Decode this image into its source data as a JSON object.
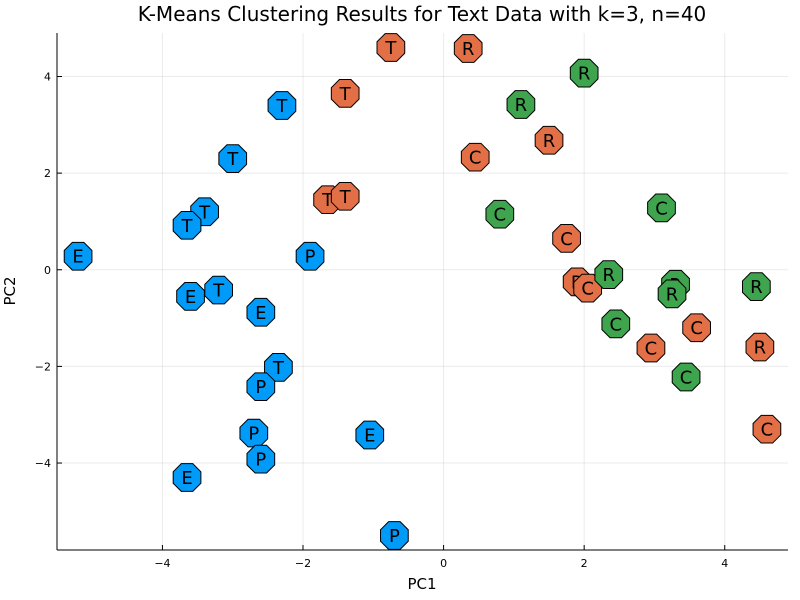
{
  "chart_data": {
    "type": "scatter",
    "title": "K-Means Clustering Results for Text Data with k=3, n=40",
    "xlabel": "PC1",
    "ylabel": "PC2",
    "xlim": [
      -5.5,
      4.9
    ],
    "ylim": [
      -5.8,
      4.9
    ],
    "xticks": [
      -4,
      -2,
      0,
      2,
      4
    ],
    "yticks": [
      -4,
      -2,
      0,
      2,
      4
    ],
    "xtick_labels": [
      "−4",
      "−2",
      "0",
      "2",
      "4"
    ],
    "ytick_labels": [
      "−4",
      "−2",
      "0",
      "2",
      "4"
    ],
    "grid": true,
    "legend": "none",
    "colors": [
      "#009af9",
      "#e26f46",
      "#3ea44e"
    ],
    "clusters": [
      {
        "color": "#009af9",
        "points": [
          {
            "x": -5.2,
            "y": 0.28,
            "label": "E"
          },
          {
            "x": -2.3,
            "y": 3.4,
            "label": "T"
          },
          {
            "x": -3.0,
            "y": 2.3,
            "label": "T"
          },
          {
            "x": -3.4,
            "y": 1.2,
            "label": "T"
          },
          {
            "x": -3.65,
            "y": 0.92,
            "label": "T"
          },
          {
            "x": -1.9,
            "y": 0.28,
            "label": "P"
          },
          {
            "x": -3.6,
            "y": -0.55,
            "label": "E"
          },
          {
            "x": -3.2,
            "y": -0.42,
            "label": "T"
          },
          {
            "x": -2.6,
            "y": -0.88,
            "label": "E"
          },
          {
            "x": -2.35,
            "y": -2.02,
            "label": "T"
          },
          {
            "x": -2.6,
            "y": -2.42,
            "label": "P"
          },
          {
            "x": -2.7,
            "y": -3.38,
            "label": "P"
          },
          {
            "x": -2.6,
            "y": -3.92,
            "label": "P"
          },
          {
            "x": -1.05,
            "y": -3.42,
            "label": "E"
          },
          {
            "x": -3.65,
            "y": -4.3,
            "label": "E"
          },
          {
            "x": -0.7,
            "y": -5.5,
            "label": "P"
          }
        ]
      },
      {
        "color": "#e26f46",
        "points": [
          {
            "x": -0.75,
            "y": 4.6,
            "label": "T"
          },
          {
            "x": 0.35,
            "y": 4.58,
            "label": "R"
          },
          {
            "x": -1.4,
            "y": 3.65,
            "label": "T"
          },
          {
            "x": 1.5,
            "y": 2.68,
            "label": "R"
          },
          {
            "x": 0.45,
            "y": 2.33,
            "label": "C"
          },
          {
            "x": -1.65,
            "y": 1.45,
            "label": "T"
          },
          {
            "x": -1.4,
            "y": 1.52,
            "label": "T"
          },
          {
            "x": 1.75,
            "y": 0.65,
            "label": "C"
          },
          {
            "x": 1.9,
            "y": -0.25,
            "label": "R"
          },
          {
            "x": 2.05,
            "y": -0.38,
            "label": "C"
          },
          {
            "x": 3.6,
            "y": -1.2,
            "label": "C"
          },
          {
            "x": 2.95,
            "y": -1.62,
            "label": "C"
          },
          {
            "x": 4.5,
            "y": -1.6,
            "label": "R"
          },
          {
            "x": 4.6,
            "y": -3.3,
            "label": "C"
          }
        ]
      },
      {
        "color": "#3ea44e",
        "points": [
          {
            "x": 2.0,
            "y": 4.07,
            "label": "R"
          },
          {
            "x": 1.1,
            "y": 3.42,
            "label": "R"
          },
          {
            "x": 0.8,
            "y": 1.15,
            "label": "C"
          },
          {
            "x": 3.1,
            "y": 1.28,
            "label": "C"
          },
          {
            "x": 2.35,
            "y": -0.1,
            "label": "R"
          },
          {
            "x": 3.3,
            "y": -0.3,
            "label": "R"
          },
          {
            "x": 3.25,
            "y": -0.5,
            "label": "R"
          },
          {
            "x": 4.45,
            "y": -0.35,
            "label": "R"
          },
          {
            "x": 2.45,
            "y": -1.12,
            "label": "C"
          },
          {
            "x": 3.45,
            "y": -2.22,
            "label": "C"
          }
        ]
      }
    ]
  }
}
